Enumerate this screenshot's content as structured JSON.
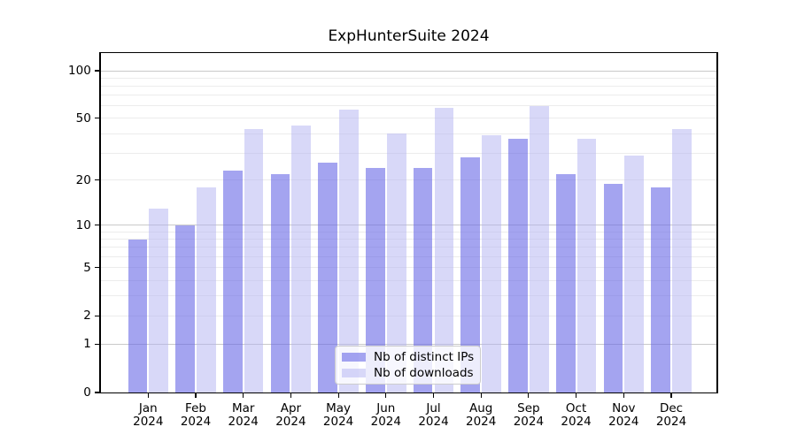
{
  "chart_data": {
    "type": "bar",
    "title": "ExpHunterSuite 2024",
    "categories": [
      "Jan",
      "Feb",
      "Mar",
      "Apr",
      "May",
      "Jun",
      "Jul",
      "Aug",
      "Sep",
      "Oct",
      "Nov",
      "Dec"
    ],
    "category_year": "2024",
    "series": [
      {
        "name": "Nb of distinct IPs",
        "color_hex": "#a4a4f0",
        "fill_rgba": "rgba(103,103,230,0.60)",
        "values": [
          8,
          10,
          23,
          22,
          26,
          24,
          24,
          28,
          37,
          22,
          19,
          18
        ]
      },
      {
        "name": "Nb of downloads",
        "color_hex": "#d8d8f8",
        "fill_rgba": "rgba(177,177,241,0.50)",
        "values": [
          13,
          18,
          43,
          45,
          57,
          40,
          58,
          39,
          60,
          37,
          29,
          43
        ]
      }
    ],
    "yscale": "log10(1+y)",
    "y_ticks": [
      0,
      1,
      2,
      5,
      10,
      20,
      50,
      100
    ],
    "ylim": [
      0,
      128
    ],
    "grid": {
      "major_at": [
        1,
        10,
        100
      ],
      "minor_at": [
        2,
        3,
        4,
        5,
        6,
        7,
        8,
        9,
        20,
        30,
        40,
        50,
        60,
        70,
        80,
        90
      ],
      "major_color": "#c9c9c9",
      "minor_color": "#ececec"
    },
    "legend_position": "inside-bottom-center",
    "xlabel": "",
    "ylabel": ""
  }
}
